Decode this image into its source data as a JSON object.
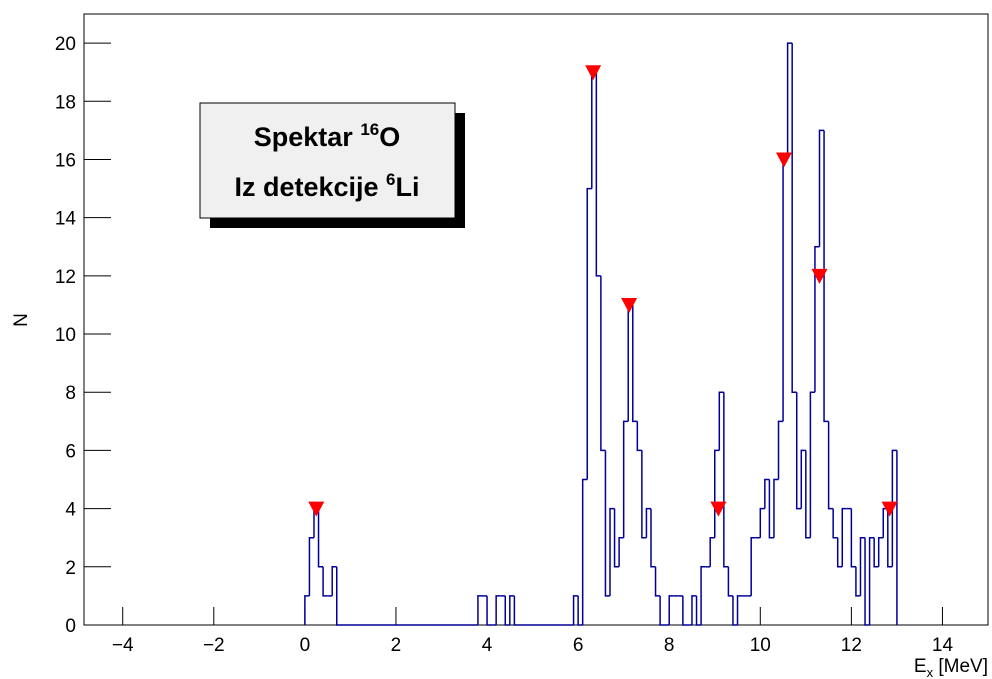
{
  "chart_data": {
    "type": "histogram",
    "bins": [
      0,
      0.1,
      0.2,
      0.3,
      0.4,
      0.5,
      0.6,
      0.7,
      0.8,
      0.9,
      1,
      1.1,
      1.2,
      1.3,
      1.4,
      1.5,
      1.6,
      1.7,
      1.8,
      1.9,
      2,
      2.1,
      2.2,
      2.3,
      2.4,
      2.5,
      2.6,
      2.7,
      2.8,
      2.9,
      3,
      3.1,
      3.2,
      3.3,
      3.4,
      3.5,
      3.6,
      3.7,
      3.8,
      3.9,
      4,
      4.1,
      4.2,
      4.3,
      4.4,
      4.5,
      4.6,
      4.7,
      4.8,
      4.9,
      5,
      5.1,
      5.2,
      5.3,
      5.4,
      5.5,
      5.6,
      5.7,
      5.8,
      5.9,
      6,
      6.1,
      6.2,
      6.3,
      6.4,
      6.5,
      6.6,
      6.7,
      6.8,
      6.9,
      7,
      7.1,
      7.2,
      7.3,
      7.4,
      7.5,
      7.6,
      7.7,
      7.8,
      7.9,
      8,
      8.1,
      8.2,
      8.3,
      8.4,
      8.5,
      8.6,
      8.7,
      8.8,
      8.9,
      9,
      9.1,
      9.2,
      9.3,
      9.4,
      9.5,
      9.6,
      9.7,
      9.8,
      9.9,
      10,
      10.1,
      10.2,
      10.3,
      10.4,
      10.5,
      10.6,
      10.7,
      10.8,
      10.9,
      11,
      11.1,
      11.2,
      11.3,
      11.4,
      11.5,
      11.6,
      11.7,
      11.8,
      11.9,
      12,
      12.1,
      12.2,
      12.3,
      12.4,
      12.5,
      12.6,
      12.7,
      12.8,
      12.9,
      13
    ],
    "counts": [
      1,
      3,
      4,
      2,
      1,
      1,
      2,
      0,
      0,
      0,
      0,
      0,
      0,
      0,
      0,
      0,
      0,
      0,
      0,
      0,
      0,
      0,
      0,
      0,
      0,
      0,
      0,
      0,
      0,
      0,
      0,
      0,
      0,
      0,
      0,
      0,
      0,
      0,
      1,
      1,
      0,
      0,
      1,
      1,
      0,
      1,
      0,
      0,
      0,
      0,
      0,
      0,
      0,
      0,
      0,
      0,
      0,
      0,
      0,
      1,
      0,
      5,
      15,
      19,
      12,
      6,
      1,
      4,
      2,
      3,
      7,
      11,
      7,
      6,
      3,
      4,
      2,
      1,
      0,
      0,
      1,
      1,
      1,
      0,
      0,
      1,
      0,
      2,
      2,
      3,
      6,
      8,
      2,
      1,
      0,
      1,
      1,
      1,
      3,
      3,
      4,
      5,
      3,
      5,
      7,
      16,
      20,
      8,
      4,
      6,
      3,
      8,
      13,
      17,
      7,
      4,
      3,
      2,
      4,
      4,
      2,
      1,
      3,
      0,
      3,
      2,
      3,
      4,
      2,
      6
    ],
    "color": "#000099",
    "markers": {
      "x": [
        0.25,
        6.33,
        7.12,
        9.08,
        10.52,
        11.3,
        12.84
      ],
      "y": [
        4,
        19,
        11,
        4,
        16,
        12,
        4
      ],
      "color": "#ff0000"
    },
    "xlim": [
      -4.85,
      15
    ],
    "ylim": [
      0,
      21
    ],
    "xticks": [
      {
        "value": -4,
        "label": "−4"
      },
      {
        "value": -2,
        "label": "−2"
      },
      0,
      2,
      4,
      6,
      8,
      10,
      12,
      14
    ],
    "yticks": [
      0,
      2,
      4,
      6,
      8,
      10,
      12,
      14,
      16,
      18,
      20
    ],
    "xlabel": {
      "symbol": "E",
      "subscript": "x",
      "unit": " [MeV]"
    },
    "ylabel": "N",
    "annotation": [
      {
        "text": "Spektar ",
        "sup": "16",
        "element": "O"
      },
      {
        "text": "Iz detekcije ",
        "sup": "6",
        "element": "Li"
      }
    ]
  }
}
